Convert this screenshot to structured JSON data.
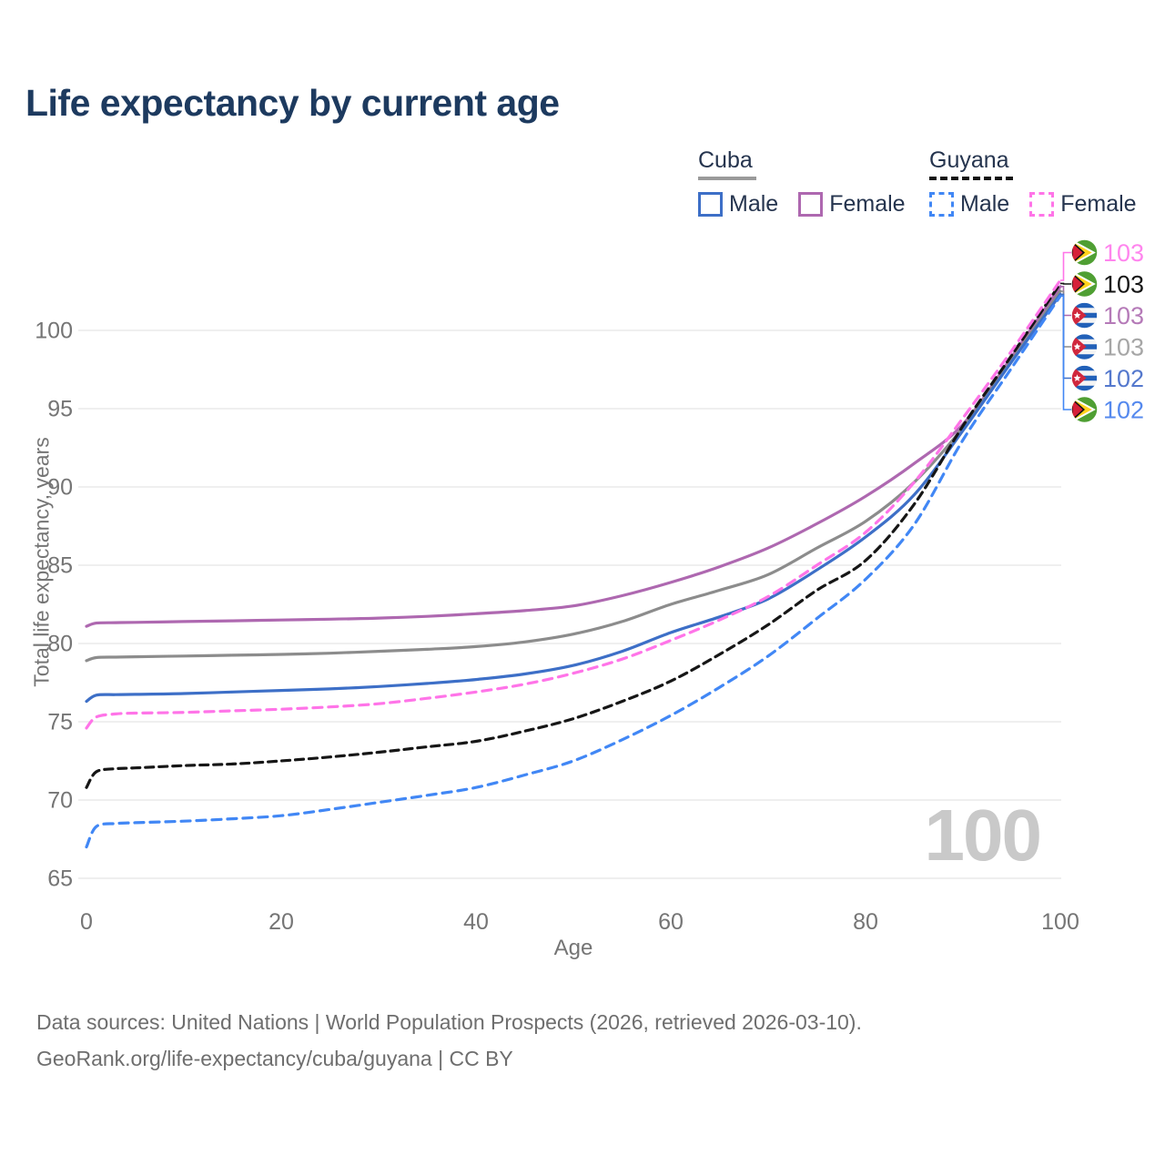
{
  "title": "Life expectancy by current age",
  "watermark": "100",
  "legend": {
    "groups": [
      {
        "label": "Cuba",
        "style": "solid",
        "underline_color": "#9a9a9a",
        "items": [
          {
            "label": "Male",
            "color": "#3d6fc7"
          },
          {
            "label": "Female",
            "color": "#ae68b0"
          }
        ]
      },
      {
        "label": "Guyana",
        "style": "dashed",
        "underline_color": "#141414",
        "items": [
          {
            "label": "Male",
            "color": "#4187f5"
          },
          {
            "label": "Female",
            "color": "#ff74e8"
          }
        ]
      }
    ]
  },
  "axes": {
    "x_label": "Age",
    "y_label": "Total life expectancy, years",
    "x_ticks": [
      0,
      20,
      40,
      60,
      80,
      100
    ],
    "y_ticks": [
      65,
      70,
      75,
      80,
      85,
      90,
      95,
      100
    ],
    "tick_color": "#757575",
    "grid_color": "#eaeaea"
  },
  "chart_data": {
    "type": "line",
    "title": "Life expectancy by current age",
    "xlabel": "Age",
    "ylabel": "Total life expectancy, years",
    "xlim": [
      0,
      100
    ],
    "ylim": [
      65,
      103.5
    ],
    "grid": "horizontal",
    "series": [
      {
        "id": "cuba_female",
        "name": "Cuba Female",
        "color": "#ae68b0",
        "dash": null,
        "points": [
          [
            0,
            81.1
          ],
          [
            1,
            81.3
          ],
          [
            3,
            81.33
          ],
          [
            5,
            81.35
          ],
          [
            10,
            81.4
          ],
          [
            15,
            81.45
          ],
          [
            20,
            81.5
          ],
          [
            25,
            81.55
          ],
          [
            30,
            81.62
          ],
          [
            35,
            81.73
          ],
          [
            40,
            81.9
          ],
          [
            45,
            82.1
          ],
          [
            50,
            82.4
          ],
          [
            55,
            83.05
          ],
          [
            60,
            83.9
          ],
          [
            65,
            84.9
          ],
          [
            70,
            86.1
          ],
          [
            75,
            87.65
          ],
          [
            80,
            89.4
          ],
          [
            85,
            91.5
          ],
          [
            90,
            94.0
          ],
          [
            95,
            98.3
          ],
          [
            100,
            102.8
          ]
        ]
      },
      {
        "id": "cuba_both",
        "name": "Cuba Both sexes",
        "color": "#8c8c8c",
        "dash": null,
        "points": [
          [
            0,
            78.9
          ],
          [
            1,
            79.1
          ],
          [
            3,
            79.13
          ],
          [
            5,
            79.15
          ],
          [
            10,
            79.2
          ],
          [
            15,
            79.25
          ],
          [
            20,
            79.3
          ],
          [
            25,
            79.38
          ],
          [
            30,
            79.5
          ],
          [
            35,
            79.63
          ],
          [
            40,
            79.8
          ],
          [
            45,
            80.1
          ],
          [
            50,
            80.6
          ],
          [
            55,
            81.4
          ],
          [
            60,
            82.5
          ],
          [
            65,
            83.4
          ],
          [
            70,
            84.4
          ],
          [
            75,
            86.1
          ],
          [
            80,
            87.8
          ],
          [
            85,
            90.3
          ],
          [
            90,
            93.8
          ],
          [
            95,
            98.1
          ],
          [
            100,
            102.5
          ]
        ]
      },
      {
        "id": "cuba_male",
        "name": "Cuba Male",
        "color": "#3d6fc7",
        "dash": null,
        "points": [
          [
            0,
            76.3
          ],
          [
            1,
            76.7
          ],
          [
            3,
            76.73
          ],
          [
            5,
            76.75
          ],
          [
            10,
            76.8
          ],
          [
            15,
            76.9
          ],
          [
            20,
            77.0
          ],
          [
            25,
            77.1
          ],
          [
            30,
            77.25
          ],
          [
            35,
            77.45
          ],
          [
            40,
            77.7
          ],
          [
            45,
            78.05
          ],
          [
            50,
            78.6
          ],
          [
            55,
            79.5
          ],
          [
            60,
            80.7
          ],
          [
            65,
            81.7
          ],
          [
            70,
            82.85
          ],
          [
            75,
            84.7
          ],
          [
            80,
            86.8
          ],
          [
            85,
            89.5
          ],
          [
            90,
            93.6
          ],
          [
            95,
            98.0
          ],
          [
            100,
            102.3
          ]
        ]
      },
      {
        "id": "guyana_male",
        "name": "Guyana Male",
        "color": "#4187f5",
        "dash": "10 7",
        "points": [
          [
            0,
            67.0
          ],
          [
            1,
            68.3
          ],
          [
            3,
            68.5
          ],
          [
            5,
            68.55
          ],
          [
            10,
            68.65
          ],
          [
            15,
            68.8
          ],
          [
            20,
            69.0
          ],
          [
            25,
            69.4
          ],
          [
            30,
            69.85
          ],
          [
            35,
            70.3
          ],
          [
            40,
            70.8
          ],
          [
            45,
            71.6
          ],
          [
            50,
            72.5
          ],
          [
            55,
            73.85
          ],
          [
            60,
            75.4
          ],
          [
            65,
            77.2
          ],
          [
            70,
            79.2
          ],
          [
            75,
            81.6
          ],
          [
            80,
            84.1
          ],
          [
            85,
            87.6
          ],
          [
            90,
            93.0
          ],
          [
            95,
            97.6
          ],
          [
            100,
            102.2
          ]
        ]
      },
      {
        "id": "guyana_both",
        "name": "Guyana Both sexes",
        "color": "#161616",
        "dash": "9 6",
        "points": [
          [
            0,
            70.8
          ],
          [
            1,
            71.8
          ],
          [
            3,
            72.0
          ],
          [
            5,
            72.05
          ],
          [
            10,
            72.2
          ],
          [
            15,
            72.3
          ],
          [
            20,
            72.5
          ],
          [
            25,
            72.75
          ],
          [
            30,
            73.05
          ],
          [
            35,
            73.4
          ],
          [
            40,
            73.75
          ],
          [
            45,
            74.4
          ],
          [
            50,
            75.2
          ],
          [
            55,
            76.3
          ],
          [
            60,
            77.6
          ],
          [
            65,
            79.3
          ],
          [
            70,
            81.2
          ],
          [
            75,
            83.4
          ],
          [
            80,
            85.3
          ],
          [
            85,
            88.9
          ],
          [
            90,
            93.9
          ],
          [
            95,
            98.4
          ],
          [
            100,
            103.0
          ]
        ]
      },
      {
        "id": "guyana_female",
        "name": "Guyana Female",
        "color": "#ff74e8",
        "dash": "10 7",
        "points": [
          [
            0,
            74.6
          ],
          [
            1,
            75.3
          ],
          [
            3,
            75.5
          ],
          [
            5,
            75.55
          ],
          [
            10,
            75.6
          ],
          [
            15,
            75.7
          ],
          [
            20,
            75.8
          ],
          [
            25,
            75.95
          ],
          [
            30,
            76.15
          ],
          [
            35,
            76.5
          ],
          [
            40,
            76.9
          ],
          [
            45,
            77.4
          ],
          [
            50,
            78.1
          ],
          [
            55,
            79.0
          ],
          [
            60,
            80.2
          ],
          [
            65,
            81.5
          ],
          [
            70,
            83.0
          ],
          [
            75,
            85.0
          ],
          [
            80,
            87.1
          ],
          [
            85,
            90.3
          ],
          [
            90,
            94.4
          ],
          [
            95,
            98.7
          ],
          [
            100,
            103.2
          ]
        ]
      }
    ],
    "end_labels": [
      {
        "series": "guyana_female",
        "flag": "guyana",
        "value": "103",
        "text_color": "#ff85ee"
      },
      {
        "series": "guyana_both",
        "flag": "guyana",
        "value": "103",
        "text_color": "#141414"
      },
      {
        "series": "cuba_female",
        "flag": "cuba",
        "value": "103",
        "text_color": "#b57ab8"
      },
      {
        "series": "cuba_both",
        "flag": "cuba",
        "value": "103",
        "text_color": "#a6a6a6"
      },
      {
        "series": "cuba_male",
        "flag": "cuba",
        "value": "102",
        "text_color": "#5478cd"
      },
      {
        "series": "guyana_male",
        "flag": "guyana",
        "value": "102",
        "text_color": "#5589ee"
      }
    ]
  },
  "footer": {
    "line1": "Data sources: United Nations | World Population Prospects (2026, retrieved 2026-03-10).",
    "line2": "GeoRank.org/life-expectancy/cuba/guyana | CC BY"
  }
}
